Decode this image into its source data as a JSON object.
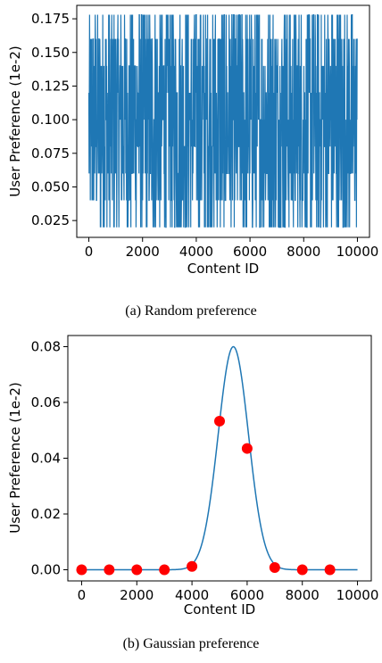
{
  "chart_data": [
    {
      "type": "line",
      "caption": "(a)  Random preference",
      "xlabel": "Content ID",
      "ylabel": "User Preference (1e-2)",
      "xlim": [
        -450,
        10450
      ],
      "ylim": [
        0.0125,
        0.185
      ],
      "xticks": [
        0,
        2000,
        4000,
        6000,
        8000,
        10000
      ],
      "yticks": [
        0.025,
        0.05,
        0.075,
        0.1,
        0.125,
        0.15,
        0.175
      ],
      "ytick_labels": [
        "0.025",
        "0.050",
        "0.075",
        "0.100",
        "0.125",
        "0.150",
        "0.175"
      ],
      "grid": false,
      "levels": [
        0.02,
        0.04,
        0.06,
        0.08,
        0.1,
        0.12,
        0.14,
        0.16,
        0.178
      ],
      "series": [
        {
          "color": "#1f77b4",
          "description": "noisy random values between 0.020 and 0.178 across content IDs 0–10000",
          "n_points": 10000,
          "min": 0.02,
          "max": 0.178
        }
      ]
    },
    {
      "type": "line",
      "caption": "(b)  Gaussian preference",
      "xlabel": "Content ID",
      "ylabel": "User Preference (1e-2)",
      "xlim": [
        -500,
        10500
      ],
      "ylim": [
        -0.004,
        0.084
      ],
      "xticks": [
        0,
        2000,
        4000,
        6000,
        8000,
        10000
      ],
      "yticks": [
        0.0,
        0.02,
        0.04,
        0.06,
        0.08
      ],
      "ytick_labels": [
        "0.00",
        "0.02",
        "0.04",
        "0.06",
        "0.08"
      ],
      "grid": false,
      "series": [
        {
          "color": "#1f77b4",
          "kind": "gaussian",
          "mean": 5500,
          "std": 550,
          "peak": 0.08,
          "x_range": [
            0,
            10000
          ]
        },
        {
          "color": "#ff0000",
          "kind": "scatter",
          "x": [
            0,
            1000,
            2000,
            3000,
            4000,
            5000,
            6000,
            7000,
            8000,
            9000
          ],
          "y": [
            0.0,
            0.0,
            0.0,
            0.0,
            0.0012,
            0.0533,
            0.0435,
            0.0008,
            0.0,
            0.0
          ]
        }
      ]
    }
  ]
}
